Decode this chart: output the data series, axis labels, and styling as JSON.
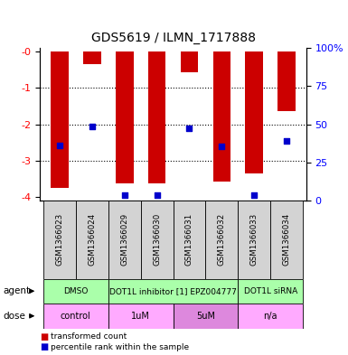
{
  "title": "GDS5619 / ILMN_1717888",
  "samples": [
    "GSM1366023",
    "GSM1366024",
    "GSM1366029",
    "GSM1366030",
    "GSM1366031",
    "GSM1366032",
    "GSM1366033",
    "GSM1366034"
  ],
  "bar_values": [
    -3.75,
    -0.35,
    -3.62,
    -3.62,
    -0.58,
    -3.58,
    -3.35,
    -1.65
  ],
  "percentile_values": [
    -2.58,
    -2.07,
    -3.95,
    -3.95,
    -2.1,
    -2.62,
    -3.95,
    -2.45
  ],
  "ylim_left": [
    -4.1,
    0.1
  ],
  "yticks_left": [
    0,
    -1,
    -2,
    -3,
    -4
  ],
  "ytick_left_labels": [
    "-0",
    "-1",
    "-2",
    "-3",
    "-4"
  ],
  "yticks_right": [
    0,
    25,
    50,
    75,
    100
  ],
  "ytick_right_labels": [
    "0",
    "25",
    "50",
    "75",
    "100%"
  ],
  "bar_color": "#cc0000",
  "dot_color": "#0000cc",
  "agent_row": [
    {
      "label": "DMSO",
      "start": 0,
      "end": 2,
      "color": "#aaffaa"
    },
    {
      "label": "DOT1L inhibitor [1] EPZ004777",
      "start": 2,
      "end": 6,
      "color": "#aaffaa"
    },
    {
      "label": "DOT1L siRNA",
      "start": 6,
      "end": 8,
      "color": "#aaffaa"
    }
  ],
  "dose_row": [
    {
      "label": "control",
      "start": 0,
      "end": 2,
      "color": "#ffaaff"
    },
    {
      "label": "1uM",
      "start": 2,
      "end": 4,
      "color": "#ffaaff"
    },
    {
      "label": "5uM",
      "start": 4,
      "end": 6,
      "color": "#dd88dd"
    },
    {
      "label": "n/a",
      "start": 6,
      "end": 8,
      "color": "#ffaaff"
    }
  ],
  "legend_red": "transformed count",
  "legend_blue": "percentile rank within the sample",
  "bar_width": 0.55,
  "figsize": [
    3.85,
    3.93
  ],
  "dpi": 100
}
